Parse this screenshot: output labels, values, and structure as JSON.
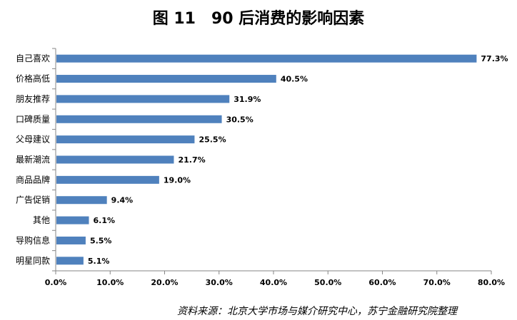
{
  "figure": {
    "title": "图 11　90 后消费的影响因素",
    "source": "资料来源：北京大学市场与媒介研究中心，苏宁金融研究院整理"
  },
  "colors": {
    "bar": "#4f81bd",
    "axis": "#868686",
    "text": "#000000"
  },
  "chart_data": {
    "type": "bar",
    "orientation": "horizontal",
    "categories": [
      "自己喜欢",
      "价格高低",
      "朋友推荐",
      "口碑质量",
      "父母建议",
      "最新潮流",
      "商品品牌",
      "广告促销",
      "其他",
      "导购信息",
      "明星同款"
    ],
    "values": [
      77.3,
      40.5,
      31.9,
      30.5,
      25.5,
      21.7,
      19.0,
      9.4,
      6.1,
      5.5,
      5.1
    ],
    "data_labels": [
      "77.3%",
      "40.5%",
      "31.9%",
      "30.5%",
      "25.5%",
      "21.7%",
      "19.0%",
      "9.4%",
      "6.1%",
      "5.5%",
      "5.1%"
    ],
    "xlim": [
      0,
      80
    ],
    "xticks": [
      0,
      10,
      20,
      30,
      40,
      50,
      60,
      70,
      80
    ],
    "xtick_labels": [
      "0.0%",
      "10.0%",
      "20.0%",
      "30.0%",
      "40.0%",
      "50.0%",
      "60.0%",
      "70.0%",
      "80.0%"
    ],
    "grid": false,
    "legend": "none"
  }
}
